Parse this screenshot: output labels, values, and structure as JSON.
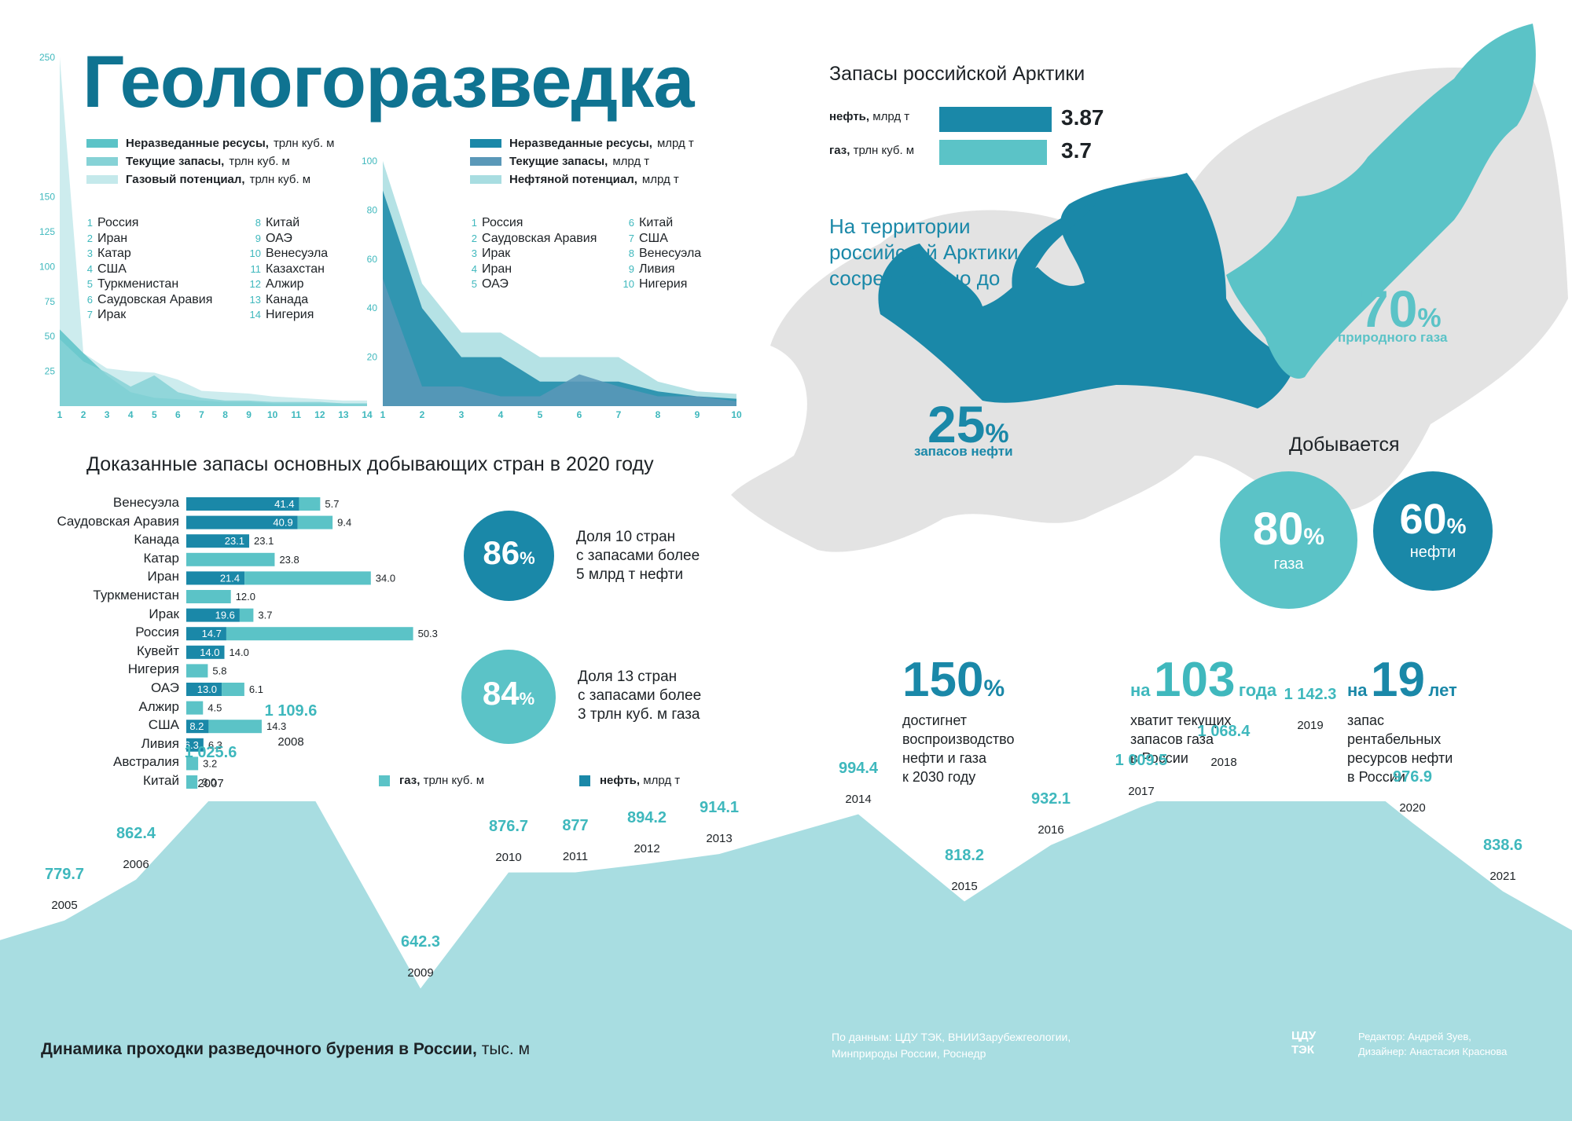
{
  "title": "Геологоразведка",
  "colors": {
    "dark": "#1a88a8",
    "mid": "#5bc3c7",
    "light": "#a8dde1",
    "gray": "#e3e3e3",
    "drill": "#a8dde1"
  },
  "gas_legend": [
    {
      "bold": "Неразведанные ресусы,",
      "unit": "трлн куб. м"
    },
    {
      "bold": "Текущие запасы,",
      "unit": "трлн куб. м"
    },
    {
      "bold": "Газовый потенциал,",
      "unit": "трлн куб. м"
    }
  ],
  "oil_legend": [
    {
      "bold": "Неразведанные ресусы,",
      "unit": "млрд т"
    },
    {
      "bold": "Текущие запасы,",
      "unit": "млрд т"
    },
    {
      "bold": "Нефтяной потенциал,",
      "unit": "млрд т"
    }
  ],
  "gas_countries": [
    "Россия",
    "Иран",
    "Катар",
    "США",
    "Туркменистан",
    "Саудовская Аравия",
    "Ирак",
    "Китай",
    "ОАЭ",
    "Венесуэла",
    "Казахстан",
    "Алжир",
    "Канада",
    "Нигерия"
  ],
  "oil_countries": [
    "Россия",
    "Саудовская Аравия",
    "Ирак",
    "Иран",
    "ОАЭ",
    "Китай",
    "США",
    "Венесуэла",
    "Ливия",
    "Нигерия"
  ],
  "arctic": {
    "title": "Запасы российской Арктики",
    "oil_label": "нефть,",
    "oil_unit": "млрд т",
    "oil_value": "3.87",
    "gas_label": "газ,",
    "gas_unit": "трлн куб. м",
    "gas_value": "3.7",
    "text": "На территории российской Арктики сосредоточено до",
    "gas_pct": "70",
    "gas_pct_label": "природного газа",
    "oil_pct": "25",
    "oil_pct_label": "запасов нефти",
    "pct_sign": "%"
  },
  "extracted": {
    "title": "Добывается",
    "gas_pct": "80",
    "gas_label": "газа",
    "oil_pct": "60",
    "oil_label": "нефти"
  },
  "reserves_title": "Доказанные запасы основных добывающих стран в 2020 году",
  "share": [
    {
      "pct": "86",
      "text1": "Доля 10 стран",
      "text2": "с запасами более",
      "text3": "5 млрд т нефти"
    },
    {
      "pct": "84",
      "text1": "Доля 13 стран",
      "text2": "с запасами более",
      "text3": "3 трлн куб. м газа"
    }
  ],
  "bar_legend": {
    "gas": "газ,",
    "gas_unit": "трлн куб. м",
    "oil": "нефть,",
    "oil_unit": "млрд т"
  },
  "stats": [
    {
      "prefix": "",
      "num": "150",
      "suffix": "%",
      "l1": "достигнет",
      "l2": "воспроизводство",
      "l3": "нефти и газа",
      "l4": "к 2030 году"
    },
    {
      "prefix": "на",
      "num": "103",
      "suffix": "года",
      "l1": "хватит текущих",
      "l2": "запасов газа",
      "l3": "в России",
      "l4": ""
    },
    {
      "prefix": "на",
      "num": "19",
      "suffix": "лет",
      "l1": "запас",
      "l2": "рентабельных",
      "l3": "ресурсов нефти",
      "l4": "в России"
    }
  ],
  "drill_title": "Динамика проходки разведочного бурения в России,",
  "drill_unit": "тыс. м",
  "source": {
    "l1": "По данным: ЦДУ ТЭК, ВНИИЗарубежгеологии,",
    "l2": "Минприроды России, Роснедр"
  },
  "credits": {
    "logo1": "ЦДУ",
    "logo2": "ТЭК",
    "l1": "Редактор: Андрей Зуев,",
    "l2": "Дизайнер: Анастасия Краснова"
  },
  "chart_data": [
    {
      "type": "area",
      "title": "",
      "x": [
        1,
        2,
        3,
        4,
        5,
        6,
        7,
        8,
        9,
        10,
        11,
        12,
        13,
        14
      ],
      "ylim": [
        0,
        250
      ],
      "yticks": [
        25,
        50,
        75,
        100,
        125,
        150,
        250
      ],
      "series": [
        {
          "name": "Неразведанные ресусы, трлн куб. м",
          "values": [
            55,
            38,
            22,
            10,
            6,
            5,
            4,
            3,
            3,
            2,
            2,
            2,
            2,
            2
          ]
        },
        {
          "name": "Текущие запасы, трлн куб. м",
          "values": [
            48,
            32,
            24,
            14,
            22,
            10,
            6,
            4,
            4,
            3,
            3,
            3,
            2,
            2
          ]
        },
        {
          "name": "Газовый потенциал, трлн куб. м",
          "values": [
            250,
            38,
            27,
            25,
            24,
            19,
            11,
            10,
            9,
            7,
            6,
            5,
            4,
            4
          ]
        }
      ]
    },
    {
      "type": "area",
      "title": "",
      "x": [
        1,
        2,
        3,
        4,
        5,
        6,
        7,
        8,
        9,
        10
      ],
      "ylim": [
        0,
        100
      ],
      "yticks": [
        20,
        40,
        60,
        80,
        100
      ],
      "series": [
        {
          "name": "Неразведанные ресусы, млрд т",
          "values": [
            88,
            40,
            20,
            20,
            10,
            10,
            10,
            6,
            4,
            3
          ]
        },
        {
          "name": "Текущие запасы, млрд т",
          "values": [
            52,
            8,
            8,
            4,
            4,
            13,
            8,
            4,
            4,
            2
          ]
        },
        {
          "name": "Нефтяной потенциал, млрд т",
          "values": [
            100,
            50,
            30,
            30,
            20,
            20,
            20,
            10,
            6,
            5
          ]
        }
      ]
    },
    {
      "type": "bar",
      "title": "Доказанные запасы основных добывающих стран в 2020 году",
      "categories": [
        "Венесуэла",
        "Саудовская Аравия",
        "Канада",
        "Катар",
        "Иран",
        "Туркменистан",
        "Ирак",
        "Россия",
        "Кувейт",
        "Нигерия",
        "ОАЭ",
        "Алжир",
        "США",
        "Ливия",
        "Австралия",
        "Китай"
      ],
      "series": [
        {
          "name": "нефть, млрд т",
          "values": [
            41.4,
            40.9,
            23.1,
            null,
            21.4,
            null,
            19.6,
            14.7,
            14.0,
            null,
            13.0,
            null,
            8.2,
            6.3,
            null,
            null
          ]
        },
        {
          "name": "газ, трлн куб. м",
          "values": [
            5.7,
            9.4,
            null,
            23.8,
            34.0,
            12.0,
            3.7,
            50.3,
            null,
            5.8,
            6.1,
            4.5,
            14.3,
            null,
            3.2,
            3.0
          ]
        }
      ]
    },
    {
      "type": "area",
      "title": "Динамика проходки разведочного бурения в России, тыс. м",
      "x": [
        "2005",
        "2006",
        "2007",
        "2008",
        "2009",
        "2010",
        "2011",
        "2012",
        "2013",
        "2014",
        "2015",
        "2016",
        "2017",
        "2018",
        "2019",
        "2020",
        "2021"
      ],
      "values": [
        779.7,
        862.4,
        1025.6,
        1109.6,
        642.3,
        876.7,
        877,
        894.2,
        914.1,
        994.4,
        818.2,
        932.1,
        1009.5,
        1068.4,
        1142.3,
        976.9,
        838.6
      ],
      "labels": [
        "779.7",
        "862.4",
        "1 025.6",
        "1 109.6",
        "642.3",
        "876.7",
        "877",
        "894.2",
        "914.1",
        "994.4",
        "818.2",
        "932.1",
        "1 009.5",
        "1 068.4",
        "1 142.3",
        "976.9",
        "838.6"
      ]
    }
  ]
}
